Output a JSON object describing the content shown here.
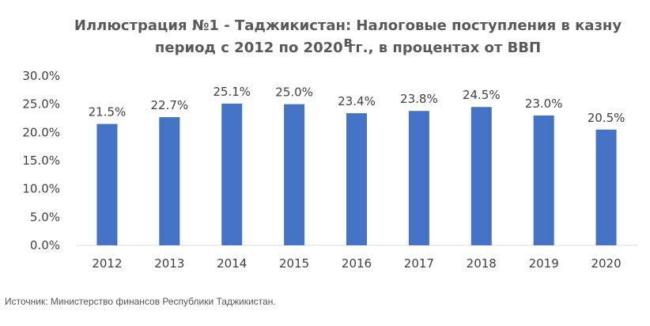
{
  "chart_data": {
    "type": "bar",
    "title_line1": "Иллюстрация №1 - Таджикистан: Налоговые поступления в казну в",
    "title_line2": "период с 2012 по 2020 гг., в процентах от ВВП",
    "categories": [
      "2012",
      "2013",
      "2014",
      "2015",
      "2016",
      "2017",
      "2018",
      "2019",
      "2020"
    ],
    "values": [
      21.5,
      22.7,
      25.1,
      25.0,
      23.4,
      23.8,
      24.5,
      23.0,
      20.5
    ],
    "data_labels": [
      "21.5%",
      "22.7%",
      "25.1%",
      "25.0%",
      "23.4%",
      "23.8%",
      "24.5%",
      "23.0%",
      "20.5%"
    ],
    "y_ticks": [
      0,
      5,
      10,
      15,
      20,
      25,
      30
    ],
    "y_tick_labels": [
      "0.0%",
      "5.0%",
      "10.0%",
      "15.0%",
      "20.0%",
      "25.0%",
      "30.0%"
    ],
    "ylim": [
      0,
      30
    ],
    "xlabel": "",
    "ylabel": "",
    "grid": false,
    "bar_color": "#4472C4",
    "label_color": "#404040",
    "axis_color": "#D9D9D9"
  },
  "footer": {
    "source": "Источник: Министерство финансов Республики Таджикистан."
  }
}
